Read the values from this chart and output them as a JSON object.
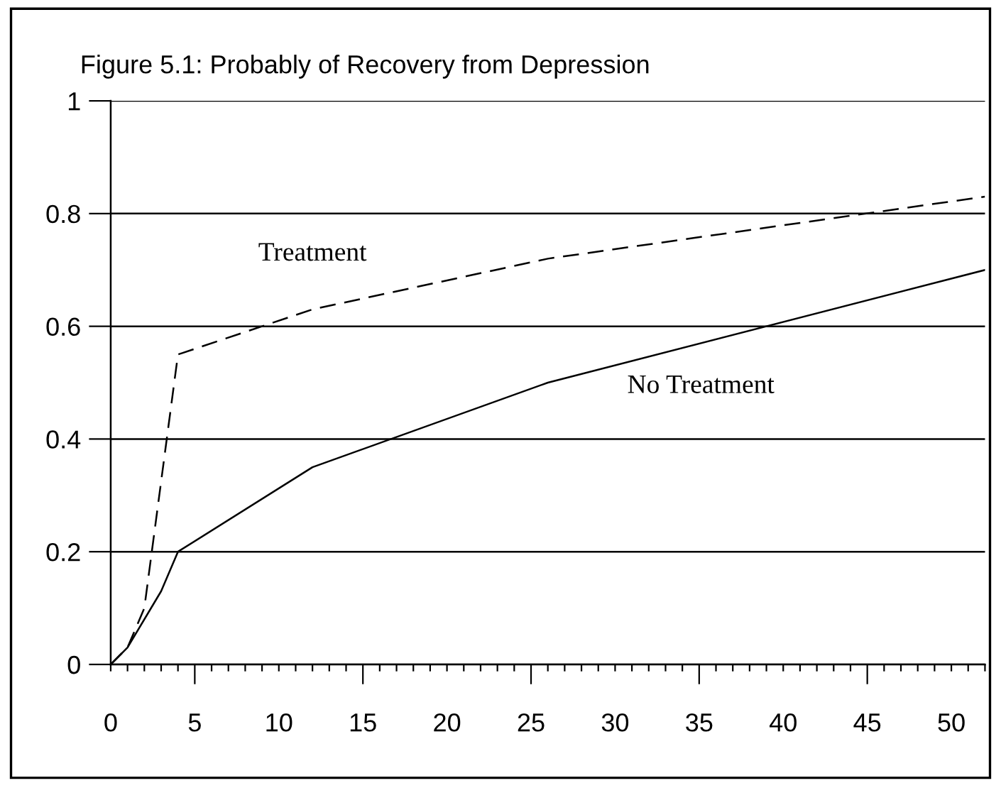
{
  "chart_data": {
    "type": "line",
    "title": "Figure 5.1: Probably of Recovery from Depression",
    "series": [
      {
        "name": "Treatment",
        "color": "#000000",
        "line_style": "dashed",
        "x": [
          0,
          1,
          2,
          4,
          12,
          26,
          52
        ],
        "values": [
          0,
          0.03,
          0.1,
          0.55,
          0.63,
          0.72,
          0.83
        ]
      },
      {
        "name": "No Treatment",
        "color": "#000000",
        "line_style": "solid",
        "x": [
          0,
          1,
          3,
          4,
          12,
          26,
          52
        ],
        "values": [
          0,
          0.03,
          0.13,
          0.2,
          0.35,
          0.5,
          0.7
        ]
      }
    ],
    "xlim": [
      0,
      52
    ],
    "ylim": [
      0,
      1
    ],
    "xticks": [
      0,
      {
        "value": 1,
        "label": null
      },
      {
        "value": 2,
        "label": null
      },
      {
        "value": 3,
        "label": null
      },
      {
        "value": 4,
        "label": null
      },
      5,
      {
        "value": 6,
        "label": null
      },
      {
        "value": 7,
        "label": null
      },
      {
        "value": 8,
        "label": null
      },
      {
        "value": 9,
        "label": null
      },
      10,
      {
        "value": 11,
        "label": null
      },
      {
        "value": 12,
        "label": null
      },
      {
        "value": 13,
        "label": null
      },
      {
        "value": 14,
        "label": null
      },
      15,
      {
        "value": 16,
        "label": null
      },
      {
        "value": 17,
        "label": null
      },
      {
        "value": 18,
        "label": null
      },
      {
        "value": 19,
        "label": null
      },
      20,
      {
        "value": 21,
        "label": null
      },
      {
        "value": 22,
        "label": null
      },
      {
        "value": 23,
        "label": null
      },
      {
        "value": 24,
        "label": null
      },
      25,
      {
        "value": 26,
        "label": null
      },
      {
        "value": 27,
        "label": null
      },
      {
        "value": 28,
        "label": null
      },
      {
        "value": 29,
        "label": null
      },
      30,
      {
        "value": 31,
        "label": null
      },
      {
        "value": 32,
        "label": null
      },
      {
        "value": 33,
        "label": null
      },
      {
        "value": 34,
        "label": null
      },
      35,
      {
        "value": 36,
        "label": null
      },
      {
        "value": 37,
        "label": null
      },
      {
        "value": 38,
        "label": null
      },
      {
        "value": 39,
        "label": null
      },
      40,
      {
        "value": 41,
        "label": null
      },
      {
        "value": 42,
        "label": null
      },
      {
        "value": 43,
        "label": null
      },
      {
        "value": 44,
        "label": null
      },
      45,
      {
        "value": 46,
        "label": null
      },
      {
        "value": 47,
        "label": null
      },
      {
        "value": 48,
        "label": null
      },
      {
        "value": 49,
        "label": null
      },
      50,
      {
        "value": 51,
        "label": null
      },
      {
        "value": 52,
        "label": null
      }
    ],
    "yticks": [
      0,
      0.2,
      0.4,
      0.6,
      0.8,
      1
    ],
    "grid": "y",
    "legend": false,
    "marker": "none"
  }
}
